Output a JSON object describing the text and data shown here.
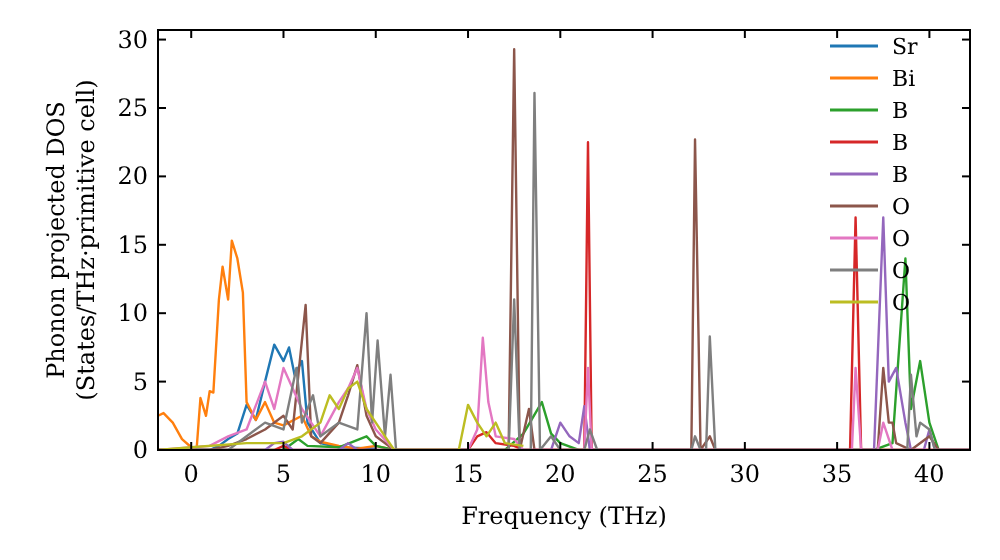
{
  "chart_data": {
    "type": "line",
    "xlabel": "Frequency (THz)",
    "ylabel": "Phonon projected DOS\n(States/THz·primitive cell)",
    "xlim": [
      -1.8,
      42.2
    ],
    "ylim": [
      0,
      30.7
    ],
    "xticks": [
      0,
      5,
      10,
      15,
      20,
      25,
      30,
      35,
      40
    ],
    "yticks": [
      0,
      5,
      10,
      15,
      20,
      25,
      30
    ],
    "legend": "top right",
    "grid": false,
    "line_style": "solid",
    "series": [
      {
        "name": "Sr",
        "color": "#1f77b4",
        "x": [
          -1.8,
          1,
          1.5,
          2,
          2.5,
          3,
          3.5,
          4,
          4.5,
          5,
          5.3,
          5.6,
          6,
          6.3,
          7,
          8,
          10
        ],
        "values": [
          0,
          0,
          0.3,
          0.8,
          1.2,
          3.3,
          2.2,
          5,
          7.7,
          6.5,
          7.5,
          5.5,
          6.5,
          2,
          0.5,
          0.2,
          0.1
        ]
      },
      {
        "name": "Bi",
        "color": "#ff7f0e",
        "x": [
          -1.8,
          -1.5,
          -1,
          -0.5,
          0,
          0.3,
          0.5,
          0.8,
          1,
          1.2,
          1.5,
          1.7,
          2,
          2.2,
          2.5,
          2.8,
          3,
          3.5,
          4,
          4.5,
          5,
          6,
          6.5,
          7,
          8,
          9,
          10,
          11,
          42.2
        ],
        "values": [
          2.5,
          2.7,
          2,
          0.8,
          0.2,
          0.2,
          3.8,
          2.5,
          4.3,
          4.2,
          11,
          13.4,
          11,
          15.3,
          14,
          11.5,
          3.5,
          2.2,
          3.5,
          2,
          1.8,
          2.5,
          1,
          0.6,
          0.3,
          0.1,
          0.3,
          0,
          0
        ]
      },
      {
        "name": "B",
        "color": "#2ca02c",
        "x": [
          -1.8,
          5,
          5.8,
          6.3,
          8,
          9.5,
          10,
          11,
          17,
          18,
          19,
          19.5,
          20,
          21,
          37,
          38,
          38.7,
          39,
          39.5,
          40,
          40.5,
          42.2
        ],
        "values": [
          0,
          0,
          0.8,
          0.3,
          0.2,
          1,
          0.3,
          0,
          0,
          1.2,
          3.5,
          1.2,
          0.5,
          0,
          0,
          0.5,
          14,
          3,
          6.5,
          2,
          0,
          0
        ]
      },
      {
        "name": "B",
        "color": "#d62728",
        "x": [
          -1.8,
          4.5,
          5,
          5.5,
          15,
          15.5,
          16,
          16.5,
          17.5,
          18,
          21.3,
          21.5,
          21.7,
          35.7,
          36,
          36.3,
          42.2
        ],
        "values": [
          0,
          0,
          0.3,
          0,
          0,
          1,
          1.3,
          0.5,
          0.3,
          0,
          0,
          22.5,
          0,
          0,
          17,
          0,
          0
        ]
      },
      {
        "name": "B",
        "color": "#9467bd",
        "x": [
          -1.8,
          4,
          4.5,
          5,
          5.5,
          8,
          8.5,
          9,
          19.5,
          20,
          20.5,
          21,
          21.3,
          21.6,
          37,
          37.5,
          37.8,
          38.2,
          38.7,
          39,
          39.7,
          40,
          40.3,
          42.2
        ],
        "values": [
          0,
          0,
          0.5,
          0.6,
          0,
          0,
          0.5,
          0,
          0,
          2,
          1,
          0.5,
          3.2,
          0,
          0,
          17,
          5,
          6,
          2,
          0,
          0,
          1.5,
          0,
          0
        ]
      },
      {
        "name": "O",
        "color": "#8c564b",
        "x": [
          -1.8,
          1,
          2,
          3,
          4,
          5,
          5.5,
          6.2,
          6.5,
          7,
          8,
          8.5,
          9,
          9.5,
          10,
          11,
          17.2,
          17.5,
          17.8,
          18.3,
          18.6,
          27.1,
          27.3,
          27.6,
          28.1,
          28.4,
          37.2,
          37.5,
          37.8,
          38,
          38.2,
          39,
          40,
          40.5,
          42.2
        ],
        "values": [
          0,
          0,
          0.3,
          0.8,
          1.5,
          2.5,
          1.5,
          10.6,
          1,
          0.5,
          2,
          4,
          6.2,
          2.5,
          1,
          0,
          0,
          29.3,
          0,
          3,
          0,
          0,
          22.7,
          0,
          1,
          0,
          0,
          6,
          2,
          2,
          0.5,
          0,
          1,
          0,
          0
        ]
      },
      {
        "name": "O",
        "color": "#e377c2",
        "x": [
          -1.8,
          1,
          2,
          3,
          4,
          4.5,
          5,
          5.5,
          6,
          6.5,
          7,
          8,
          8.5,
          9,
          9.5,
          10,
          11,
          15,
          15.5,
          15.8,
          16.1,
          16.5,
          17.5,
          18,
          21.3,
          21.5,
          21.7,
          35.8,
          36,
          36.3,
          37.2,
          37.5,
          38,
          42.2
        ],
        "values": [
          0,
          0.3,
          1,
          1.5,
          5,
          3,
          6,
          4.5,
          3,
          2,
          1,
          3.5,
          4.5,
          6,
          3,
          1.5,
          0,
          0,
          1.5,
          8.2,
          3.5,
          1,
          0.8,
          0,
          0,
          6,
          0,
          0,
          6,
          0,
          0,
          2,
          0,
          0
        ]
      },
      {
        "name": "O",
        "color": "#7f7f7f",
        "x": [
          -1.8,
          2,
          3,
          4,
          5,
          5.7,
          6,
          6.6,
          7,
          8,
          9,
          9.5,
          9.8,
          10.1,
          10.5,
          10.8,
          11.1,
          17.2,
          17.5,
          17.8,
          18.4,
          18.6,
          18.9,
          19.5,
          20,
          21.3,
          21.6,
          22,
          27.1,
          27.3,
          27.6,
          27.9,
          28.1,
          28.4,
          38.8,
          39,
          39.3,
          39.5,
          40,
          40.3,
          42.2
        ],
        "values": [
          0,
          0,
          1,
          2,
          1.5,
          6,
          2,
          4,
          1,
          2,
          1.5,
          10,
          2,
          8,
          1,
          5.5,
          0,
          0,
          11,
          0,
          0,
          26.1,
          0,
          1,
          0,
          0,
          1.5,
          0,
          0,
          1,
          0,
          0,
          8.3,
          0,
          0,
          5.5,
          1,
          2,
          1.5,
          0,
          0
        ]
      },
      {
        "name": "O",
        "color": "#bcbd22",
        "x": [
          -1.8,
          0,
          3,
          5,
          6,
          7,
          7.5,
          8,
          8.5,
          9,
          9.5,
          10,
          10.5,
          11,
          14.5,
          15,
          15.5,
          16,
          16.5,
          17,
          18
        ],
        "values": [
          0,
          0.2,
          0.5,
          0.5,
          1,
          2,
          4,
          3,
          4.5,
          5,
          3,
          2,
          1,
          0,
          0,
          3.3,
          2,
          1,
          2,
          0.5,
          0.3
        ]
      }
    ]
  }
}
